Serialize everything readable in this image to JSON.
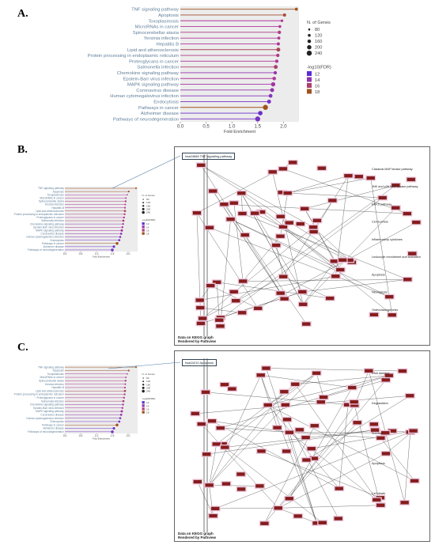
{
  "panels": {
    "a": "A.",
    "b": "B.",
    "c": "C."
  },
  "chart_data": {
    "type": "scatter",
    "style": "lollipop-horizontal",
    "xlabel": "Fold Enrichment",
    "xticks": [
      0.0,
      0.5,
      1.0,
      1.5,
      2.0
    ],
    "xlim": [
      0,
      2.3
    ],
    "categories": [
      "TNF signaling pathway",
      "Apoptosis",
      "Toxoplasmosis",
      "MicroRNAs in cancer",
      "Spinocerebellar ataxia",
      "Yersinia infection",
      "Hepatitis B",
      "Lipid and atherosclerosis",
      "Protein processing in endoplasmic reticulum",
      "Proteoglycans in cancer",
      "Salmonella infection",
      "Chemokine signaling pathway",
      "Epstein-Barr virus infection",
      "MAPK signaling pathway",
      "Coronavirus disease",
      "Human cytomegalovirus infection",
      "Endocytosis",
      "Pathways in cancer",
      "Alzheimer disease",
      "Pathways of neurodegeneration"
    ],
    "fold_enrichment": [
      2.25,
      2.02,
      1.97,
      1.93,
      1.92,
      1.91,
      1.9,
      1.9,
      1.89,
      1.87,
      1.85,
      1.84,
      1.82,
      1.8,
      1.78,
      1.75,
      1.72,
      1.65,
      1.55,
      1.5
    ],
    "n_genes": [
      130,
      140,
      110,
      120,
      150,
      130,
      140,
      180,
      150,
      150,
      180,
      150,
      160,
      200,
      180,
      170,
      180,
      260,
      210,
      240
    ],
    "neg_log10_fdr": [
      18,
      17.5,
      15,
      15,
      15.5,
      15,
      15,
      16.5,
      15.5,
      15,
      16,
      14,
      15,
      14.5,
      14,
      13.5,
      13,
      18,
      12.5,
      13
    ],
    "size_legend": {
      "title": "N. of Genes",
      "values": [
        80,
        120,
        160,
        200,
        240
      ]
    },
    "color_legend": {
      "title": "-log10(FDR)",
      "values": [
        12,
        14,
        16,
        18
      ]
    },
    "colors": {
      "low": "#5b2dd6",
      "mid": "#b0389a",
      "high": "#a0521c",
      "plot_bg": "#ececec",
      "label": "#5f7f9a"
    }
  },
  "kegg_b": {
    "title": "hsa04668 TNF signaling pathway",
    "footer": [
      "Data on KEGG graph",
      "Rendered by Pathview"
    ],
    "labels": [
      "Classical MAP kinase pathway",
      "JNK and p38 MAP kinase pathway",
      "ERK5 pathway",
      "Cell survival",
      "Inflammatory cytokines",
      "Leukocyte recruitment and activation",
      "Apoptosis",
      "Necroptosis",
      "Osteoclastogenesis"
    ]
  },
  "kegg_c": {
    "title": "hsa04210 Apoptosis",
    "footer": [
      "Data on KEGG graph",
      "Rendered by Pathview"
    ],
    "labels": [
      "DNA damage",
      "Degradation",
      "Survival",
      "Apoptosis",
      "Cell death"
    ]
  }
}
